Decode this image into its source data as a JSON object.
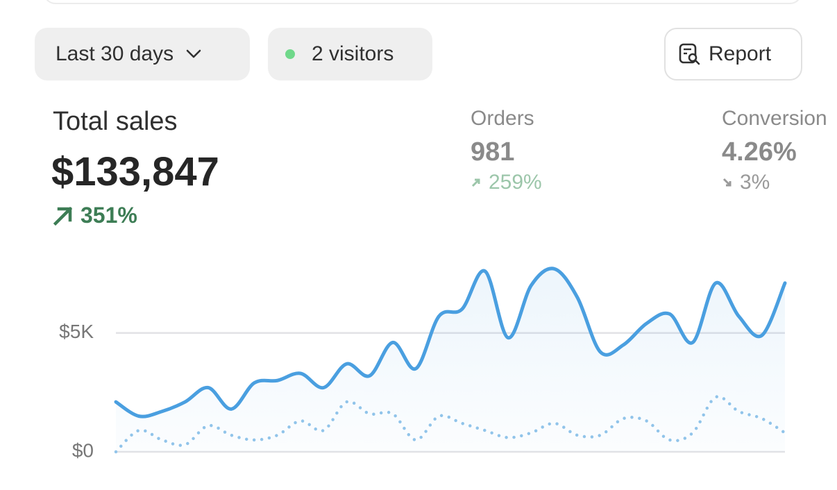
{
  "filters": {
    "date_range": "Last 30 days",
    "visitors": "2 visitors",
    "report": "Report"
  },
  "metrics": [
    {
      "label": "Total sales",
      "value": "$133,847",
      "change": "351%"
    },
    {
      "label": "Orders",
      "value": "981",
      "change": "259%"
    },
    {
      "label": "Conversion",
      "value": "4.26%",
      "change": "3%"
    }
  ],
  "chart_data": {
    "type": "line",
    "series": [
      {
        "color": "#4a9fe0",
        "style": "solid",
        "values": [
          2100,
          1500,
          1700,
          2100,
          2700,
          1800,
          2900,
          3000,
          3300,
          2700,
          3700,
          3200,
          4600,
          3500,
          5700,
          6000,
          7600,
          4800,
          7000,
          7700,
          6500,
          4200,
          4500,
          5400,
          5800,
          4600,
          7100,
          5700,
          4900,
          7100
        ]
      },
      {
        "color": "#93c5ea",
        "style": "dotted",
        "values": [
          0,
          900,
          500,
          300,
          1100,
          700,
          500,
          700,
          1300,
          900,
          2100,
          1600,
          1600,
          500,
          1500,
          1200,
          900,
          600,
          800,
          1200,
          700,
          700,
          1400,
          1300,
          500,
          800,
          2300,
          1700,
          1400,
          800
        ]
      }
    ],
    "ylim": [
      0,
      8000
    ],
    "yticks": [
      {
        "value": 0,
        "label": "$0"
      },
      {
        "value": 5000,
        "label": "$5K"
      }
    ],
    "grid": true
  }
}
